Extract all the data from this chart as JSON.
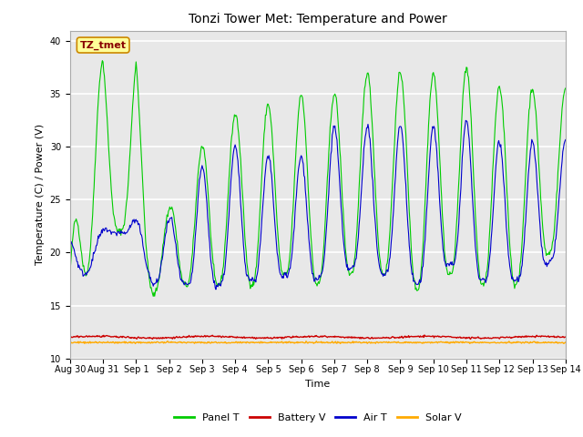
{
  "title": "Tonzi Tower Met: Temperature and Power",
  "xlabel": "Time",
  "ylabel": "Temperature (C) / Power (V)",
  "annotation": "TZ_tmet",
  "ylim": [
    10,
    41
  ],
  "yticks": [
    10,
    15,
    20,
    25,
    30,
    35,
    40
  ],
  "xlim": [
    0,
    15
  ],
  "xtick_positions": [
    0,
    1,
    2,
    3,
    4,
    5,
    6,
    7,
    8,
    9,
    10,
    11,
    12,
    13,
    14,
    15
  ],
  "xtick_labels": [
    "Aug 30",
    "Aug 31",
    "Sep 1",
    "Sep 2",
    "Sep 3",
    "Sep 4",
    "Sep 5",
    "Sep 6",
    "Sep 7",
    "Sep 8",
    "Sep 9",
    "Sep 10",
    "Sep 11",
    "Sep 12",
    "Sep 13",
    "Sep 14"
  ],
  "colors": {
    "panel_t": "#00cc00",
    "battery_v": "#cc0000",
    "air_t": "#0000cc",
    "solar_v": "#ffaa00"
  },
  "legend_labels": [
    "Panel T",
    "Battery V",
    "Air T",
    "Solar V"
  ],
  "figure_bg": "#ffffff",
  "axes_bg": "#e8e8e8",
  "annotation_bg": "#ffff99",
  "annotation_border": "#cc8800",
  "annotation_text_color": "#880000",
  "grid_color": "#ffffff",
  "title_fontsize": 10,
  "axis_label_fontsize": 8,
  "tick_fontsize": 7,
  "legend_fontsize": 8,
  "annotation_fontsize": 8
}
